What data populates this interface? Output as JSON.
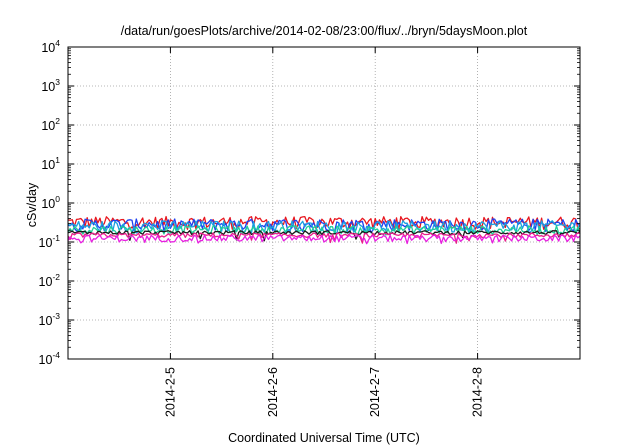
{
  "chart_data": {
    "type": "line",
    "title": "/data/run/goesPlots/archive/2014-02-08/23:00/flux/../bryn/5daysMoon.plot",
    "xlabel": "Coordinated Universal Time (UTC)",
    "ylabel": "cSv/day",
    "x_ticks": [
      "2014-2-5",
      "2014-2-6",
      "2014-2-7",
      "2014-2-8"
    ],
    "x_range": [
      "2014-02-04 00:00",
      "2014-02-09 00:00"
    ],
    "y_scale": "log",
    "ylim": [
      0.0001,
      10000
    ],
    "y_ticks": [
      {
        "base": "10",
        "exp": "4"
      },
      {
        "base": "10",
        "exp": "3"
      },
      {
        "base": "10",
        "exp": "2"
      },
      {
        "base": "10",
        "exp": "1"
      },
      {
        "base": "10",
        "exp": "0"
      },
      {
        "base": "10",
        "exp": "-1"
      },
      {
        "base": "10",
        "exp": "-2"
      },
      {
        "base": "10",
        "exp": "-3"
      },
      {
        "base": "10",
        "exp": "-4"
      }
    ],
    "grid": true,
    "series": [
      {
        "color": "#e8171f",
        "baseline": 0.33,
        "amplitude": 0.12
      },
      {
        "color": "#1e3ff0",
        "baseline": 0.29,
        "amplitude": 0.1
      },
      {
        "color": "#1aa0e0",
        "baseline": 0.26,
        "amplitude": 0.09
      },
      {
        "color": "#1fd09a",
        "baseline": 0.21,
        "amplitude": 0.05
      },
      {
        "color": "#1a1a1a",
        "baseline": 0.175,
        "amplitude": 0.02
      },
      {
        "color": "#e81f8a",
        "baseline": 0.15,
        "amplitude": 0.02
      },
      {
        "color": "#e81fe0",
        "baseline": 0.125,
        "amplitude": 0.025
      }
    ]
  }
}
